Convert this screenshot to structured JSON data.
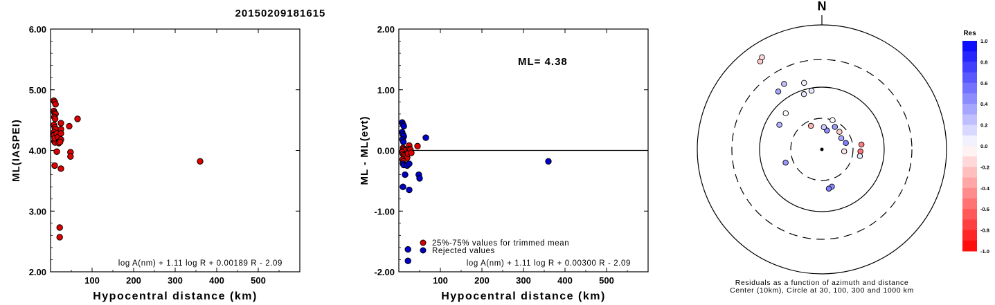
{
  "event_id": "20150209181615",
  "chart_data": [
    {
      "type": "scatter",
      "xlabel": "Hypocentral distance (km)",
      "ylabel": "ML(IASPEI)",
      "xlim": [
        0,
        600
      ],
      "ylim": [
        2.0,
        6.0
      ],
      "x_ticks": [
        "100",
        "200",
        "300",
        "400",
        "500"
      ],
      "y_ticks": [
        "2.00",
        "3.00",
        "4.00",
        "5.00",
        "6.00"
      ],
      "formula": "log A(nm) + 1.11 log R + 0.00189 R - 2.09",
      "series": [
        {
          "color": "#dd0000",
          "points": [
            [
              8,
              4.82
            ],
            [
              10,
              4.8
            ],
            [
              12,
              4.76
            ],
            [
              8,
              4.65
            ],
            [
              10,
              4.62
            ],
            [
              12,
              4.6
            ],
            [
              9,
              4.55
            ],
            [
              11,
              4.52
            ],
            [
              8,
              4.42
            ],
            [
              10,
              4.38
            ],
            [
              12,
              4.35
            ],
            [
              8,
              4.3
            ],
            [
              9,
              4.26
            ],
            [
              12,
              4.23
            ],
            [
              14,
              4.2
            ],
            [
              9,
              4.15
            ],
            [
              11,
              4.13
            ],
            [
              8,
              4.25
            ],
            [
              10,
              4.2
            ],
            [
              15,
              4.28
            ],
            [
              18,
              4.22
            ],
            [
              20,
              4.12
            ],
            [
              25,
              4.45
            ],
            [
              25,
              4.35
            ],
            [
              25,
              4.28
            ],
            [
              25,
              4.18
            ],
            [
              23,
              4.14
            ],
            [
              15,
              3.98
            ],
            [
              10,
              3.75
            ],
            [
              25,
              3.7
            ],
            [
              45,
              4.4
            ],
            [
              48,
              3.97
            ],
            [
              48,
              3.9
            ],
            [
              65,
              4.52
            ],
            [
              360,
              3.82
            ],
            [
              22,
              2.73
            ],
            [
              22,
              2.57
            ]
          ]
        }
      ]
    },
    {
      "type": "scatter",
      "xlabel": "Hypocentral distance (km)",
      "ylabel": "ML - ML(evt)",
      "xlim": [
        0,
        600
      ],
      "ylim": [
        -2.0,
        2.0
      ],
      "x_ticks": [
        "100",
        "200",
        "300",
        "400",
        "500"
      ],
      "y_ticks": [
        "-2.00",
        "-1.00",
        "0.00",
        "1.00",
        "2.00"
      ],
      "reference_line": 0.0,
      "annotation": "ML= 4.38",
      "formula": "log A(nm) + 1.11 log R + 0.00300 R - 2.09",
      "legend": [
        {
          "label": "25%-75% values for trimmed mean",
          "color": "#dd0000"
        },
        {
          "label": "Rejected values",
          "color": "#0000cc"
        }
      ],
      "legend_position": "bottom-left",
      "series": [
        {
          "name": "25%-75% values for trimmed mean",
          "color": "#dd0000",
          "points": [
            [
              10,
              0.04
            ],
            [
              12,
              0.02
            ],
            [
              14,
              0.0
            ],
            [
              8,
              -0.03
            ],
            [
              10,
              -0.06
            ],
            [
              12,
              -0.08
            ],
            [
              15,
              -0.1
            ],
            [
              20,
              -0.12
            ],
            [
              25,
              0.08
            ],
            [
              25,
              0.02
            ],
            [
              22,
              -0.05
            ],
            [
              28,
              0.01
            ],
            [
              30,
              -0.04
            ],
            [
              45,
              0.07
            ],
            [
              9,
              -0.15
            ],
            [
              11,
              -0.18
            ]
          ]
        },
        {
          "name": "Rejected values",
          "color": "#0000cc",
          "points": [
            [
              8,
              0.46
            ],
            [
              10,
              0.43
            ],
            [
              12,
              0.4
            ],
            [
              8,
              0.3
            ],
            [
              10,
              0.26
            ],
            [
              12,
              0.23
            ],
            [
              9,
              0.18
            ],
            [
              11,
              0.14
            ],
            [
              10,
              -0.22
            ],
            [
              12,
              -0.24
            ],
            [
              20,
              -0.25
            ],
            [
              25,
              -0.22
            ],
            [
              48,
              -0.4
            ],
            [
              50,
              -0.46
            ],
            [
              65,
              0.21
            ],
            [
              360,
              -0.18
            ],
            [
              10,
              -0.6
            ],
            [
              15,
              -0.4
            ],
            [
              25,
              -0.65
            ],
            [
              22,
              -1.63
            ],
            [
              22,
              -1.82
            ]
          ]
        }
      ]
    },
    {
      "type": "scatter",
      "title": "N",
      "caption_lines": [
        "Residuals as a function of azimuth and distance",
        "Center (10km), Circle at 30, 100, 300 and 1000 km"
      ],
      "rings_km": [
        30,
        100,
        300,
        1000
      ],
      "colorbar": {
        "label": "Res",
        "ticks": [
          "1.0",
          "0.8",
          "0.6",
          "0.4",
          "0.2",
          "0.0",
          "-0.2",
          "-0.4",
          "-0.6",
          "-0.8",
          "-1.0"
        ],
        "range": [
          -1.0,
          1.0
        ],
        "positive_color": "#0000ff",
        "negative_color": "#ff0000"
      },
      "stations": [
        {
          "azimuth_deg": 325,
          "distance_km": 550,
          "residual": -0.2
        },
        {
          "azimuth_deg": 327,
          "distance_km": 600,
          "residual": -0.15
        },
        {
          "azimuth_deg": 330,
          "distance_km": 170,
          "residual": 0.25
        },
        {
          "azimuth_deg": 323,
          "distance_km": 150,
          "residual": 0.35
        },
        {
          "azimuth_deg": 345,
          "distance_km": 130,
          "residual": 0.05
        },
        {
          "azimuth_deg": 350,
          "distance_km": 90,
          "residual": 0.1
        },
        {
          "azimuth_deg": 342,
          "distance_km": 85,
          "residual": 0.1
        },
        {
          "azimuth_deg": 315,
          "distance_km": 65,
          "residual": 0.0
        },
        {
          "azimuth_deg": 300,
          "distance_km": 60,
          "residual": 0.3
        },
        {
          "azimuth_deg": 30,
          "distance_km": 25,
          "residual": 0.4
        },
        {
          "azimuth_deg": 15,
          "distance_km": 20,
          "residual": 0.45
        },
        {
          "azimuth_deg": 5,
          "distance_km": 22,
          "residual": 0.2
        },
        {
          "azimuth_deg": 45,
          "distance_km": 24,
          "residual": -0.2
        },
        {
          "azimuth_deg": 60,
          "distance_km": 22,
          "residual": 0.35
        },
        {
          "azimuth_deg": 75,
          "distance_km": 24,
          "residual": 0.5
        },
        {
          "azimuth_deg": 95,
          "distance_km": 22,
          "residual": -0.1
        },
        {
          "azimuth_deg": 100,
          "distance_km": 40,
          "residual": 0.1
        },
        {
          "azimuth_deg": 83,
          "distance_km": 42,
          "residual": -0.5
        },
        {
          "azimuth_deg": 93,
          "distance_km": 40,
          "residual": -0.55
        },
        {
          "azimuth_deg": 165,
          "distance_km": 40,
          "residual": 0.45
        },
        {
          "azimuth_deg": 170,
          "distance_km": 42,
          "residual": 0.5
        },
        {
          "azimuth_deg": 250,
          "distance_km": 40,
          "residual": 0.4
        },
        {
          "azimuth_deg": 335,
          "distance_km": 25,
          "residual": -0.3
        },
        {
          "azimuth_deg": 20,
          "distance_km": 30,
          "residual": 0.0
        }
      ]
    }
  ]
}
